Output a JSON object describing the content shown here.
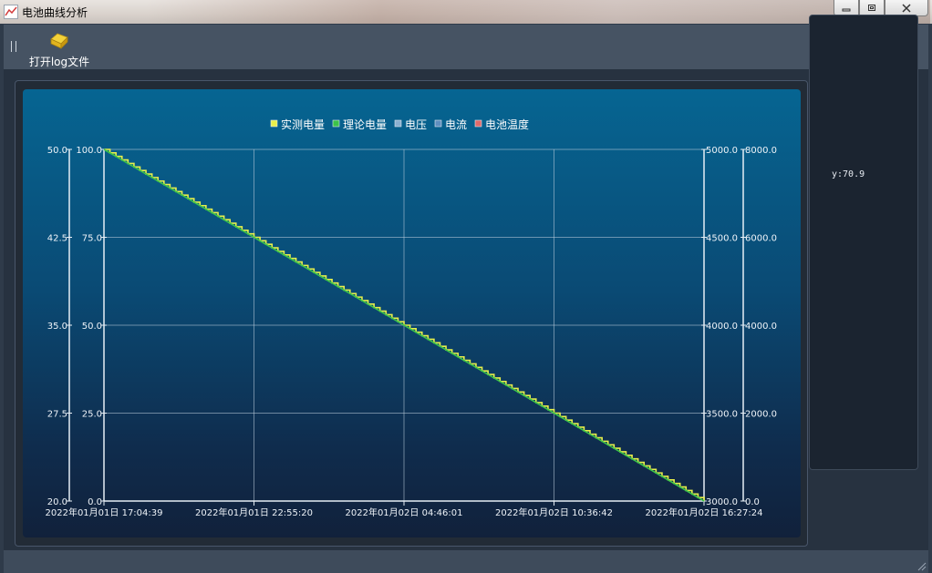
{
  "window": {
    "title": "电池曲线分析",
    "icon": "line-chart-icon"
  },
  "toolbar": {
    "open_log_label": "打开log文件",
    "open_log_icon": "folder-open-icon"
  },
  "chart_data": {
    "type": "line",
    "title": "",
    "legend": {
      "placement": "top-center",
      "items": [
        {
          "name": "实测电量",
          "color": "#e8f04a"
        },
        {
          "name": "理论电量",
          "color": "#3cc34a"
        },
        {
          "name": "电压",
          "color": "#8ab0d0"
        },
        {
          "name": "电流",
          "color": "#5f8fbf"
        },
        {
          "name": "电池温度",
          "color": "#e06a6a"
        }
      ]
    },
    "x_ticks": [
      "2022年01月01日 17:04:39",
      "2022年01月01日 22:55:20",
      "2022年01月02日 04:46:01",
      "2022年01月02日 10:36:42",
      "2022年01月02日 16:27:24"
    ],
    "x_range": [
      "2022-01-01 17:04:39",
      "2022-01-02 16:27:24"
    ],
    "axes": {
      "left_outer": {
        "ticks": [
          "50.0",
          "42.5",
          "35.0",
          "27.5",
          "20.0"
        ],
        "range": [
          20,
          50
        ]
      },
      "left_inner": {
        "ticks": [
          "100.0",
          "75.0",
          "50.0",
          "25.0",
          "0.0"
        ],
        "range": [
          0,
          100
        ]
      },
      "right_inner": {
        "ticks": [
          "5000.0",
          "4500.0",
          "4000.0",
          "3500.0",
          "3000.0"
        ],
        "range": [
          3000,
          5000
        ]
      },
      "right_outer": {
        "ticks": [
          "8000.0",
          "6000.0",
          "4000.0",
          "2000.0",
          "0.0"
        ],
        "range": [
          0,
          8000
        ]
      }
    },
    "grid": true,
    "series": [
      {
        "name": "实测电量",
        "axis": "left_inner",
        "style": "step",
        "steps": 100,
        "x": [
          "2022-01-01 17:04:39",
          "2022-01-02 16:27:24"
        ],
        "y": [
          100,
          0
        ]
      },
      {
        "name": "理论电量",
        "axis": "left_inner",
        "style": "line",
        "x": [
          "2022-01-01 17:04:39",
          "2022-01-02 16:27:24"
        ],
        "y": [
          100,
          0
        ]
      }
    ]
  },
  "side_panel": {
    "value_readout": "y:70.9"
  }
}
